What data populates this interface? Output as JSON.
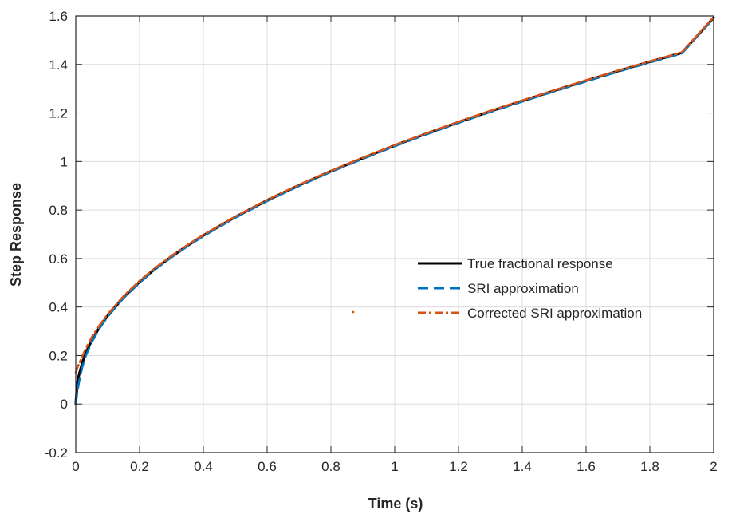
{
  "chart_data": {
    "type": "line",
    "title": "",
    "xlabel": "Time (s)",
    "ylabel": "Step Response",
    "xlim": [
      0,
      2
    ],
    "ylim": [
      -0.2,
      1.6
    ],
    "xticks": [
      0,
      0.2,
      0.4,
      0.6,
      0.8,
      1,
      1.2,
      1.4,
      1.6,
      1.8,
      2
    ],
    "yticks": [
      -0.2,
      0,
      0.2,
      0.4,
      0.6,
      0.8,
      1,
      1.2,
      1.4,
      1.6
    ],
    "xtick_labels": [
      "0",
      "0.2",
      "0.4",
      "0.6",
      "0.8",
      "1",
      "1.2",
      "1.4",
      "1.6",
      "1.8",
      "2"
    ],
    "ytick_labels": [
      "-0.2",
      "0",
      "0.2",
      "0.4",
      "0.6",
      "0.8",
      "1",
      "1.2",
      "1.4",
      "1.6"
    ],
    "grid": true,
    "legend_position": "right-middle",
    "x": [
      0,
      0.005,
      0.01,
      0.02,
      0.03,
      0.05,
      0.075,
      0.1,
      0.15,
      0.2,
      0.25,
      0.3,
      0.35,
      0.4,
      0.5,
      0.6,
      0.7,
      0.8,
      0.9,
      1.0,
      1.1,
      1.2,
      1.3,
      1.4,
      1.5,
      1.6,
      1.7,
      1.8,
      1.9,
      2.0
    ],
    "series": [
      {
        "name": "True fractional response",
        "color": "#000000",
        "style": "solid",
        "values": [
          0,
          0.09,
          0.12,
          0.168,
          0.206,
          0.262,
          0.318,
          0.364,
          0.44,
          0.504,
          0.559,
          0.608,
          0.653,
          0.695,
          0.771,
          0.84,
          0.902,
          0.96,
          1.014,
          1.066,
          1.115,
          1.162,
          1.207,
          1.25,
          1.292,
          1.333,
          1.373,
          1.411,
          1.448,
          1.593
        ]
      },
      {
        "name": "SRI approximation",
        "color": "#0072BD",
        "style": "dashed",
        "values": [
          0,
          0.05,
          0.09,
          0.15,
          0.195,
          0.255,
          0.313,
          0.36,
          0.437,
          0.5,
          0.556,
          0.605,
          0.65,
          0.692,
          0.768,
          0.837,
          0.899,
          0.957,
          1.011,
          1.063,
          1.112,
          1.159,
          1.204,
          1.247,
          1.289,
          1.33,
          1.37,
          1.408,
          1.445,
          1.59
        ]
      },
      {
        "name": "Corrected SRI approximation",
        "color": "#D95319",
        "style": "dash-dot",
        "values": [
          0.13,
          0.15,
          0.165,
          0.195,
          0.225,
          0.275,
          0.326,
          0.37,
          0.445,
          0.508,
          0.562,
          0.611,
          0.656,
          0.698,
          0.773,
          0.842,
          0.904,
          0.962,
          1.016,
          1.068,
          1.117,
          1.164,
          1.209,
          1.252,
          1.294,
          1.335,
          1.375,
          1.413,
          1.45,
          1.595
        ]
      }
    ]
  },
  "colors": {
    "grid": "#dcdcdc",
    "axis": "#262626",
    "stray_mark": "#D95319"
  }
}
